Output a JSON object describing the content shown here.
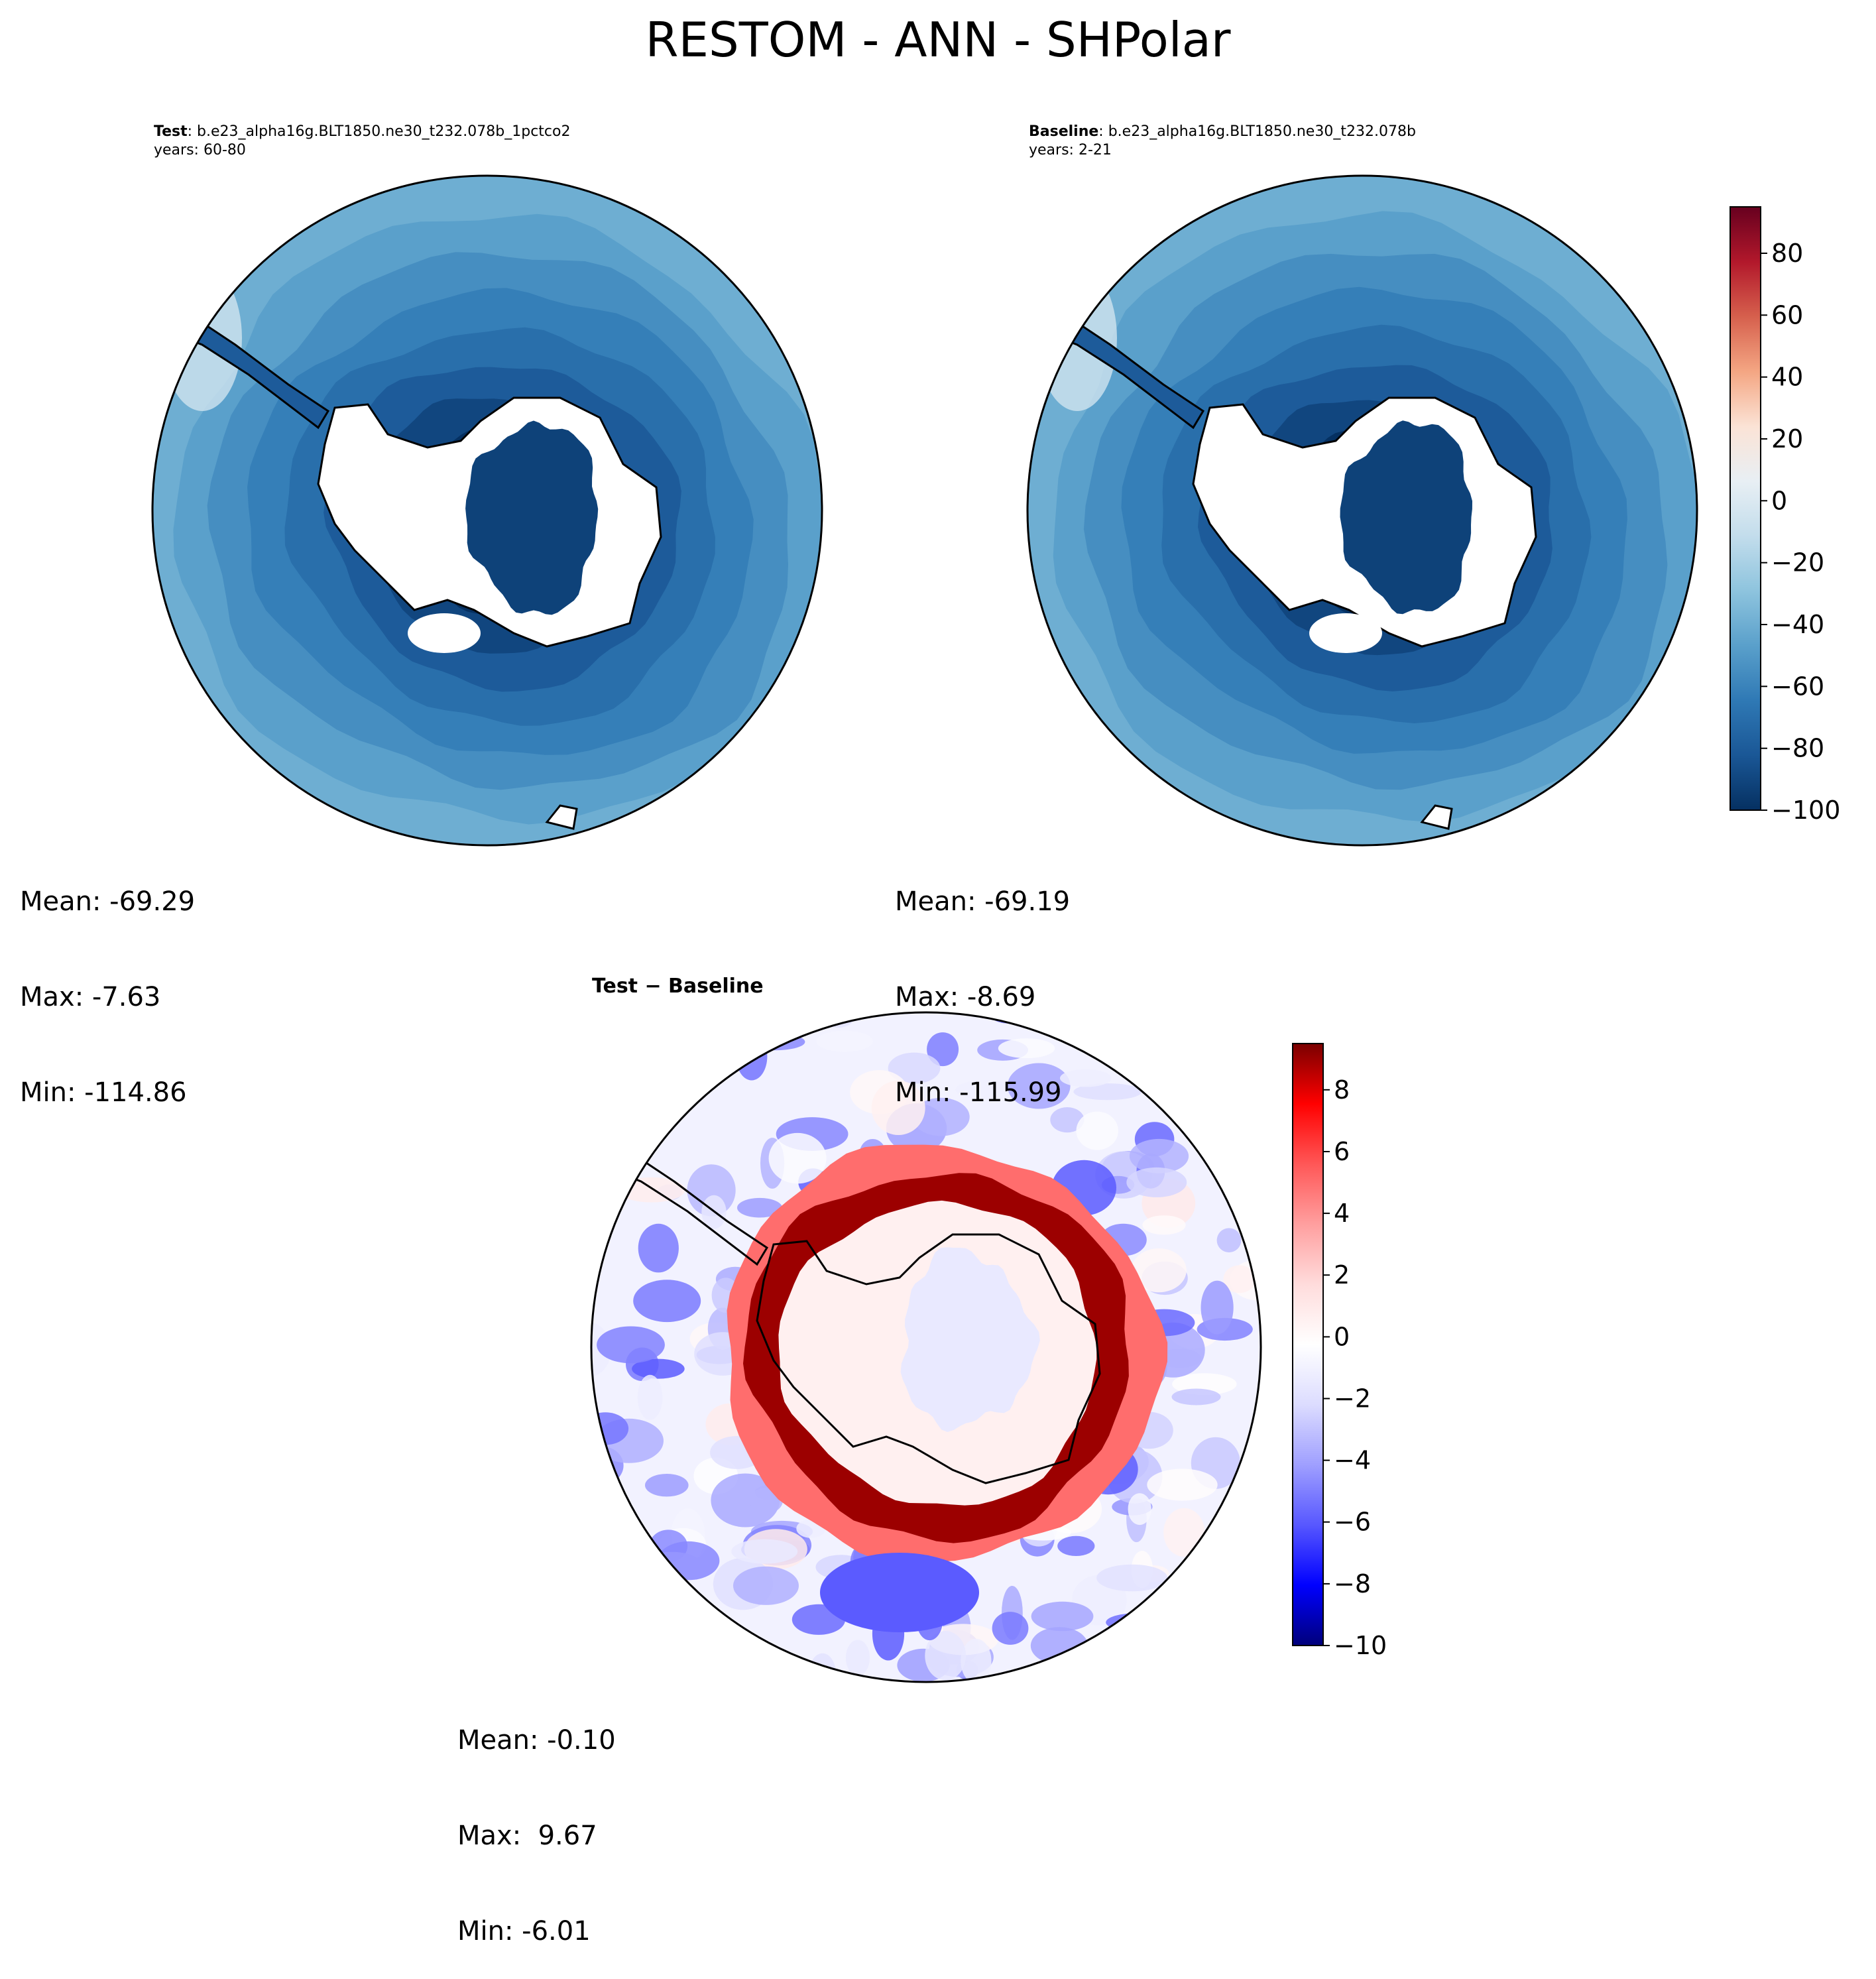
{
  "title": "RESTOM - ANN - SHPolar",
  "colors": {
    "land": "#ffffff",
    "coast": "#000000",
    "abs_scale": [
      "#053061",
      "#1a5796",
      "#2f79b5",
      "#5aa0cb",
      "#8ec4de",
      "#c3ddec",
      "#e8eff4",
      "#fbe3d6",
      "#f4a683",
      "#d6604d",
      "#b2182b",
      "#67001f"
    ],
    "diff_scale": [
      "#00007a",
      "#0000ff",
      "#5757ff",
      "#9f9fff",
      "#dcdcff",
      "#ffffff",
      "#ffdcdc",
      "#ff9f9f",
      "#ff5757",
      "#ff0000",
      "#7a0000"
    ]
  },
  "panels": {
    "test": {
      "label": "Test",
      "name": ": b.e23_alpha16g.BLT1850.ne30_t232.078b_1pctco2",
      "years": "years: 60-80",
      "mean": "Mean: -69.29",
      "max": "Max: -7.63",
      "min": "Min: -114.86"
    },
    "baseline": {
      "label": "Baseline",
      "name": ": b.e23_alpha16g.BLT1850.ne30_t232.078b",
      "years": "years: 2-21",
      "mean": "Mean: -69.19",
      "max": "Max: -8.69",
      "min": "Min: -115.99"
    },
    "diff": {
      "title": "Test − Baseline",
      "mean": "Mean: -0.10",
      "max": "Max:  9.67",
      "min": "Min: -6.01"
    }
  },
  "chart_data": [
    {
      "type": "heatmap",
      "name": "test",
      "projection": "south polar stereographic",
      "variable": "RESTOM",
      "season": "ANN",
      "field_levels_center_to_edge": [
        -110,
        -100,
        -90,
        -80,
        -70,
        -62,
        -55,
        -47,
        -40
      ],
      "colorbar_range": [
        -100,
        95
      ]
    },
    {
      "type": "heatmap",
      "name": "baseline",
      "projection": "south polar stereographic",
      "field_levels_center_to_edge": [
        -110,
        -100,
        -90,
        -80,
        -70,
        -62,
        -55,
        -47,
        -40
      ],
      "colorbar_range": [
        -100,
        95
      ],
      "colorbar_ticks": [
        -100,
        -80,
        -60,
        -40,
        -20,
        0,
        20,
        40,
        60,
        80
      ],
      "colorbar_tick_labels": [
        "−100",
        "−80",
        "−60",
        "−40",
        "−20",
        "0",
        "20",
        "40",
        "60",
        "80"
      ]
    },
    {
      "type": "heatmap",
      "name": "difference",
      "projection": "south polar stereographic",
      "ring_anomaly_max": 9,
      "outer_anomaly_min": -6,
      "colorbar_range": [
        -10,
        9.5
      ],
      "colorbar_ticks": [
        -10,
        -8,
        -6,
        -4,
        -2,
        0,
        2,
        4,
        6,
        8
      ],
      "colorbar_tick_labels": [
        "−10",
        "−8",
        "−6",
        "−4",
        "−2",
        "0",
        "2",
        "4",
        "6",
        "8"
      ]
    }
  ]
}
